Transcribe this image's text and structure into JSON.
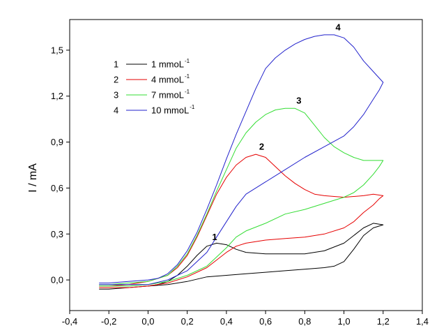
{
  "chart_data": {
    "type": "line",
    "title": "",
    "xlabel": "",
    "ylabel": "I / mA",
    "xlim": [
      -0.4,
      1.4
    ],
    "ylim": [
      -0.2,
      1.7
    ],
    "x_ticks": [
      {
        "value": -0.4,
        "label": "-0,4"
      },
      {
        "value": -0.2,
        "label": "-0,2"
      },
      {
        "value": 0.0,
        "label": "0,0"
      },
      {
        "value": 0.2,
        "label": "0,2"
      },
      {
        "value": 0.4,
        "label": "0,4"
      },
      {
        "value": 0.6,
        "label": "0,6"
      },
      {
        "value": 0.8,
        "label": "0,8"
      },
      {
        "value": 1.0,
        "label": "1,0"
      },
      {
        "value": 1.2,
        "label": "1,2"
      },
      {
        "value": 1.4,
        "label": "1,4"
      }
    ],
    "y_ticks": [
      {
        "value": 0.0,
        "label": "0,0"
      },
      {
        "value": 0.3,
        "label": "0,3"
      },
      {
        "value": 0.6,
        "label": "0,6"
      },
      {
        "value": 0.9,
        "label": "0,9"
      },
      {
        "value": 1.2,
        "label": "1,2"
      },
      {
        "value": 1.5,
        "label": "1,5"
      }
    ],
    "grid": false,
    "legend_position": "top-left",
    "series": [
      {
        "name": "1 mmoL",
        "superscript": "-1",
        "number": "1",
        "color": "#000000",
        "points": [
          [
            -0.25,
            -0.06
          ],
          [
            -0.2,
            -0.06
          ],
          [
            -0.1,
            -0.05
          ],
          [
            0.0,
            -0.04
          ],
          [
            0.05,
            -0.03
          ],
          [
            0.1,
            -0.01
          ],
          [
            0.15,
            0.03
          ],
          [
            0.2,
            0.09
          ],
          [
            0.25,
            0.16
          ],
          [
            0.3,
            0.22
          ],
          [
            0.35,
            0.24
          ],
          [
            0.4,
            0.23
          ],
          [
            0.45,
            0.2
          ],
          [
            0.5,
            0.18
          ],
          [
            0.6,
            0.17
          ],
          [
            0.7,
            0.17
          ],
          [
            0.8,
            0.17
          ],
          [
            0.9,
            0.19
          ],
          [
            1.0,
            0.24
          ],
          [
            1.05,
            0.29
          ],
          [
            1.1,
            0.34
          ],
          [
            1.15,
            0.37
          ],
          [
            1.2,
            0.36
          ],
          [
            1.15,
            0.34
          ],
          [
            1.1,
            0.29
          ],
          [
            1.05,
            0.2
          ],
          [
            1.0,
            0.12
          ],
          [
            0.95,
            0.09
          ],
          [
            0.9,
            0.08
          ],
          [
            0.8,
            0.07
          ],
          [
            0.7,
            0.06
          ],
          [
            0.6,
            0.05
          ],
          [
            0.5,
            0.04
          ],
          [
            0.4,
            0.03
          ],
          [
            0.3,
            0.02
          ],
          [
            0.2,
            -0.01
          ],
          [
            0.1,
            -0.03
          ],
          [
            0.0,
            -0.04
          ],
          [
            -0.1,
            -0.05
          ],
          [
            -0.2,
            -0.06
          ],
          [
            -0.25,
            -0.06
          ]
        ]
      },
      {
        "name": "4 mmoL",
        "superscript": "-1",
        "number": "2",
        "color": "#e60000",
        "points": [
          [
            -0.25,
            -0.04
          ],
          [
            -0.2,
            -0.04
          ],
          [
            -0.1,
            -0.03
          ],
          [
            0.0,
            -0.01
          ],
          [
            0.05,
            0.01
          ],
          [
            0.1,
            0.03
          ],
          [
            0.15,
            0.08
          ],
          [
            0.2,
            0.16
          ],
          [
            0.25,
            0.28
          ],
          [
            0.3,
            0.42
          ],
          [
            0.35,
            0.56
          ],
          [
            0.4,
            0.67
          ],
          [
            0.45,
            0.75
          ],
          [
            0.5,
            0.8
          ],
          [
            0.55,
            0.82
          ],
          [
            0.6,
            0.8
          ],
          [
            0.65,
            0.74
          ],
          [
            0.7,
            0.68
          ],
          [
            0.75,
            0.63
          ],
          [
            0.8,
            0.59
          ],
          [
            0.85,
            0.56
          ],
          [
            0.9,
            0.55
          ],
          [
            1.0,
            0.54
          ],
          [
            1.1,
            0.55
          ],
          [
            1.15,
            0.56
          ],
          [
            1.2,
            0.55
          ],
          [
            1.18,
            0.53
          ],
          [
            1.15,
            0.49
          ],
          [
            1.1,
            0.44
          ],
          [
            1.05,
            0.38
          ],
          [
            1.0,
            0.34
          ],
          [
            0.9,
            0.3
          ],
          [
            0.8,
            0.28
          ],
          [
            0.7,
            0.27
          ],
          [
            0.6,
            0.26
          ],
          [
            0.5,
            0.24
          ],
          [
            0.45,
            0.22
          ],
          [
            0.4,
            0.18
          ],
          [
            0.35,
            0.13
          ],
          [
            0.3,
            0.08
          ],
          [
            0.2,
            0.02
          ],
          [
            0.1,
            -0.02
          ],
          [
            0.0,
            -0.04
          ],
          [
            -0.1,
            -0.05
          ],
          [
            -0.2,
            -0.05
          ],
          [
            -0.25,
            -0.05
          ]
        ]
      },
      {
        "name": "7 mmoL",
        "superscript": "-1",
        "number": "3",
        "color": "#33dd33",
        "points": [
          [
            -0.25,
            -0.03
          ],
          [
            -0.2,
            -0.03
          ],
          [
            -0.1,
            -0.02
          ],
          [
            0.0,
            -0.01
          ],
          [
            0.05,
            0.01
          ],
          [
            0.1,
            0.03
          ],
          [
            0.15,
            0.09
          ],
          [
            0.2,
            0.17
          ],
          [
            0.25,
            0.29
          ],
          [
            0.3,
            0.43
          ],
          [
            0.35,
            0.58
          ],
          [
            0.4,
            0.72
          ],
          [
            0.45,
            0.86
          ],
          [
            0.5,
            0.96
          ],
          [
            0.55,
            1.03
          ],
          [
            0.6,
            1.08
          ],
          [
            0.65,
            1.11
          ],
          [
            0.7,
            1.12
          ],
          [
            0.75,
            1.12
          ],
          [
            0.8,
            1.09
          ],
          [
            0.85,
            1.01
          ],
          [
            0.9,
            0.93
          ],
          [
            0.95,
            0.87
          ],
          [
            1.0,
            0.83
          ],
          [
            1.05,
            0.8
          ],
          [
            1.1,
            0.78
          ],
          [
            1.15,
            0.78
          ],
          [
            1.2,
            0.78
          ],
          [
            1.18,
            0.74
          ],
          [
            1.15,
            0.69
          ],
          [
            1.1,
            0.62
          ],
          [
            1.05,
            0.57
          ],
          [
            1.0,
            0.54
          ],
          [
            0.9,
            0.5
          ],
          [
            0.8,
            0.46
          ],
          [
            0.7,
            0.43
          ],
          [
            0.6,
            0.37
          ],
          [
            0.5,
            0.32
          ],
          [
            0.45,
            0.28
          ],
          [
            0.4,
            0.21
          ],
          [
            0.35,
            0.15
          ],
          [
            0.3,
            0.09
          ],
          [
            0.2,
            0.03
          ],
          [
            0.1,
            -0.01
          ],
          [
            0.0,
            -0.03
          ],
          [
            -0.1,
            -0.04
          ],
          [
            -0.2,
            -0.04
          ],
          [
            -0.25,
            -0.04
          ]
        ]
      },
      {
        "name": "10 mmoL",
        "superscript": "-1",
        "number": "4",
        "color": "#2222cc",
        "points": [
          [
            -0.25,
            -0.02
          ],
          [
            -0.2,
            -0.02
          ],
          [
            -0.1,
            -0.01
          ],
          [
            0.0,
            0.0
          ],
          [
            0.05,
            0.01
          ],
          [
            0.1,
            0.04
          ],
          [
            0.15,
            0.1
          ],
          [
            0.2,
            0.19
          ],
          [
            0.25,
            0.31
          ],
          [
            0.3,
            0.46
          ],
          [
            0.35,
            0.62
          ],
          [
            0.4,
            0.79
          ],
          [
            0.45,
            0.95
          ],
          [
            0.5,
            1.1
          ],
          [
            0.55,
            1.25
          ],
          [
            0.6,
            1.38
          ],
          [
            0.65,
            1.45
          ],
          [
            0.7,
            1.5
          ],
          [
            0.75,
            1.54
          ],
          [
            0.8,
            1.57
          ],
          [
            0.85,
            1.59
          ],
          [
            0.9,
            1.6
          ],
          [
            0.95,
            1.6
          ],
          [
            1.0,
            1.58
          ],
          [
            1.05,
            1.52
          ],
          [
            1.1,
            1.43
          ],
          [
            1.15,
            1.36
          ],
          [
            1.2,
            1.29
          ],
          [
            1.18,
            1.24
          ],
          [
            1.15,
            1.18
          ],
          [
            1.1,
            1.08
          ],
          [
            1.05,
            1.0
          ],
          [
            1.0,
            0.94
          ],
          [
            0.9,
            0.87
          ],
          [
            0.8,
            0.8
          ],
          [
            0.7,
            0.72
          ],
          [
            0.6,
            0.64
          ],
          [
            0.5,
            0.56
          ],
          [
            0.45,
            0.48
          ],
          [
            0.4,
            0.38
          ],
          [
            0.35,
            0.28
          ],
          [
            0.3,
            0.18
          ],
          [
            0.2,
            0.06
          ],
          [
            0.1,
            0.0
          ],
          [
            0.0,
            -0.03
          ],
          [
            -0.1,
            -0.03
          ],
          [
            -0.2,
            -0.03
          ],
          [
            -0.25,
            -0.03
          ]
        ]
      }
    ],
    "annotations": [
      {
        "text": "1",
        "x": 0.34,
        "y": 0.26
      },
      {
        "text": "2",
        "x": 0.58,
        "y": 0.85
      },
      {
        "text": "3",
        "x": 0.77,
        "y": 1.15
      },
      {
        "text": "4",
        "x": 0.97,
        "y": 1.63
      }
    ]
  }
}
